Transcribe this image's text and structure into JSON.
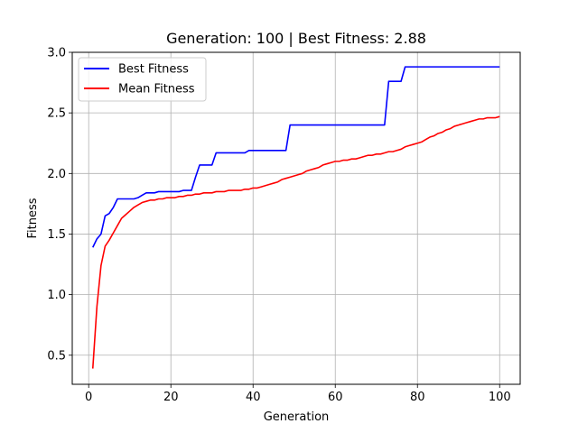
{
  "chart_data": {
    "type": "line",
    "title": "Generation: 100 | Best Fitness: 2.88",
    "xlabel": "Generation",
    "ylabel": "Fitness",
    "xlim": [
      -4,
      105
    ],
    "ylim": [
      0.26,
      3.0
    ],
    "xticks": [
      0,
      20,
      40,
      60,
      80,
      100
    ],
    "yticks": [
      0.5,
      1.0,
      1.5,
      2.0,
      2.5,
      3.0
    ],
    "xtick_labels": [
      "0",
      "20",
      "40",
      "60",
      "80",
      "100"
    ],
    "ytick_labels": [
      "0.5",
      "1.0",
      "1.5",
      "2.0",
      "2.5",
      "3.0"
    ],
    "grid": true,
    "legend_position": "top-left",
    "series": [
      {
        "name": "Best Fitness",
        "color": "#0000ff",
        "points": [
          [
            1,
            1.39
          ],
          [
            2,
            1.46
          ],
          [
            3,
            1.5
          ],
          [
            4,
            1.65
          ],
          [
            5,
            1.67
          ],
          [
            6,
            1.72
          ],
          [
            7,
            1.79
          ],
          [
            8,
            1.79
          ],
          [
            9,
            1.79
          ],
          [
            10,
            1.79
          ],
          [
            11,
            1.79
          ],
          [
            12,
            1.8
          ],
          [
            13,
            1.82
          ],
          [
            14,
            1.84
          ],
          [
            15,
            1.84
          ],
          [
            16,
            1.84
          ],
          [
            17,
            1.85
          ],
          [
            18,
            1.85
          ],
          [
            19,
            1.85
          ],
          [
            20,
            1.85
          ],
          [
            21,
            1.85
          ],
          [
            22,
            1.85
          ],
          [
            23,
            1.86
          ],
          [
            24,
            1.86
          ],
          [
            25,
            1.86
          ],
          [
            26,
            1.97
          ],
          [
            27,
            2.07
          ],
          [
            28,
            2.07
          ],
          [
            29,
            2.07
          ],
          [
            30,
            2.07
          ],
          [
            31,
            2.17
          ],
          [
            32,
            2.17
          ],
          [
            33,
            2.17
          ],
          [
            34,
            2.17
          ],
          [
            35,
            2.17
          ],
          [
            36,
            2.17
          ],
          [
            37,
            2.17
          ],
          [
            38,
            2.17
          ],
          [
            39,
            2.19
          ],
          [
            40,
            2.19
          ],
          [
            41,
            2.19
          ],
          [
            42,
            2.19
          ],
          [
            43,
            2.19
          ],
          [
            44,
            2.19
          ],
          [
            45,
            2.19
          ],
          [
            46,
            2.19
          ],
          [
            47,
            2.19
          ],
          [
            48,
            2.19
          ],
          [
            49,
            2.4
          ],
          [
            50,
            2.4
          ],
          [
            55,
            2.4
          ],
          [
            60,
            2.4
          ],
          [
            65,
            2.4
          ],
          [
            70,
            2.4
          ],
          [
            72,
            2.4
          ],
          [
            73,
            2.76
          ],
          [
            74,
            2.76
          ],
          [
            75,
            2.76
          ],
          [
            76,
            2.76
          ],
          [
            77,
            2.88
          ],
          [
            80,
            2.88
          ],
          [
            85,
            2.88
          ],
          [
            90,
            2.88
          ],
          [
            95,
            2.88
          ],
          [
            100,
            2.88
          ]
        ]
      },
      {
        "name": "Mean Fitness",
        "color": "#ff0000",
        "points": [
          [
            1,
            0.39
          ],
          [
            2,
            0.9
          ],
          [
            3,
            1.24
          ],
          [
            4,
            1.4
          ],
          [
            5,
            1.45
          ],
          [
            6,
            1.51
          ],
          [
            7,
            1.57
          ],
          [
            8,
            1.63
          ],
          [
            9,
            1.66
          ],
          [
            10,
            1.69
          ],
          [
            11,
            1.72
          ],
          [
            12,
            1.74
          ],
          [
            13,
            1.76
          ],
          [
            14,
            1.77
          ],
          [
            15,
            1.78
          ],
          [
            16,
            1.78
          ],
          [
            17,
            1.79
          ],
          [
            18,
            1.79
          ],
          [
            19,
            1.8
          ],
          [
            20,
            1.8
          ],
          [
            21,
            1.8
          ],
          [
            22,
            1.81
          ],
          [
            23,
            1.81
          ],
          [
            24,
            1.82
          ],
          [
            25,
            1.82
          ],
          [
            26,
            1.83
          ],
          [
            27,
            1.83
          ],
          [
            28,
            1.84
          ],
          [
            29,
            1.84
          ],
          [
            30,
            1.84
          ],
          [
            31,
            1.85
          ],
          [
            32,
            1.85
          ],
          [
            33,
            1.85
          ],
          [
            34,
            1.86
          ],
          [
            35,
            1.86
          ],
          [
            36,
            1.86
          ],
          [
            37,
            1.86
          ],
          [
            38,
            1.87
          ],
          [
            39,
            1.87
          ],
          [
            40,
            1.88
          ],
          [
            41,
            1.88
          ],
          [
            42,
            1.89
          ],
          [
            43,
            1.9
          ],
          [
            44,
            1.91
          ],
          [
            45,
            1.92
          ],
          [
            46,
            1.93
          ],
          [
            47,
            1.95
          ],
          [
            48,
            1.96
          ],
          [
            49,
            1.97
          ],
          [
            50,
            1.98
          ],
          [
            51,
            1.99
          ],
          [
            52,
            2.0
          ],
          [
            53,
            2.02
          ],
          [
            54,
            2.03
          ],
          [
            55,
            2.04
          ],
          [
            56,
            2.05
          ],
          [
            57,
            2.07
          ],
          [
            58,
            2.08
          ],
          [
            59,
            2.09
          ],
          [
            60,
            2.1
          ],
          [
            61,
            2.1
          ],
          [
            62,
            2.11
          ],
          [
            63,
            2.11
          ],
          [
            64,
            2.12
          ],
          [
            65,
            2.12
          ],
          [
            66,
            2.13
          ],
          [
            67,
            2.14
          ],
          [
            68,
            2.15
          ],
          [
            69,
            2.15
          ],
          [
            70,
            2.16
          ],
          [
            71,
            2.16
          ],
          [
            72,
            2.17
          ],
          [
            73,
            2.18
          ],
          [
            74,
            2.18
          ],
          [
            75,
            2.19
          ],
          [
            76,
            2.2
          ],
          [
            77,
            2.22
          ],
          [
            78,
            2.23
          ],
          [
            79,
            2.24
          ],
          [
            80,
            2.25
          ],
          [
            81,
            2.26
          ],
          [
            82,
            2.28
          ],
          [
            83,
            2.3
          ],
          [
            84,
            2.31
          ],
          [
            85,
            2.33
          ],
          [
            86,
            2.34
          ],
          [
            87,
            2.36
          ],
          [
            88,
            2.37
          ],
          [
            89,
            2.39
          ],
          [
            90,
            2.4
          ],
          [
            91,
            2.41
          ],
          [
            92,
            2.42
          ],
          [
            93,
            2.43
          ],
          [
            94,
            2.44
          ],
          [
            95,
            2.45
          ],
          [
            96,
            2.45
          ],
          [
            97,
            2.46
          ],
          [
            98,
            2.46
          ],
          [
            99,
            2.46
          ],
          [
            100,
            2.47
          ]
        ]
      }
    ]
  }
}
